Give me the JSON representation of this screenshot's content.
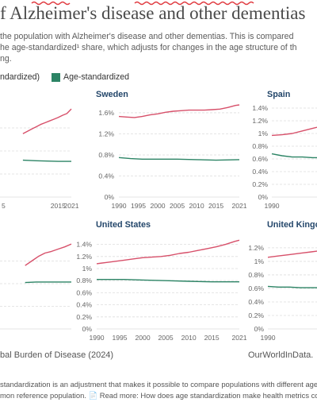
{
  "header": {
    "title": "f Alzheimer's disease and other dementias",
    "subtitle_line1": "the population with Alzheimer's disease and other dementias. This is compared",
    "subtitle_line2": "he age-standardized¹ share, which adjusts for changes in the age structure of th",
    "subtitle_line3": "ng."
  },
  "legend": {
    "item1": "ndardized)",
    "item2": "Age-standardized"
  },
  "colors": {
    "all_ages": "#d7506a",
    "age_standardized": "#2c8465",
    "grid": "#dddddd",
    "axis_text": "#666666",
    "title_text": "#23466a"
  },
  "chart_data": [
    {
      "type": "line",
      "title": "",
      "x_ticks": [
        "5",
        "2015",
        "2021"
      ],
      "y_ticks": [],
      "series": [
        {
          "key": "all_ages",
          "x": [
            1999,
            2001,
            2003,
            2005,
            2007,
            2009,
            2011,
            2013,
            2015,
            2017,
            2019,
            2021
          ],
          "values": [
            1.1,
            1.14,
            1.18,
            1.22,
            1.26,
            1.29,
            1.32,
            1.35,
            1.38,
            1.42,
            1.45,
            1.53
          ]
        },
        {
          "key": "age_standardized",
          "x": [
            1999,
            2005,
            2010,
            2015,
            2021
          ],
          "values": [
            0.64,
            0.63,
            0.625,
            0.62,
            0.62
          ]
        }
      ]
    },
    {
      "type": "line",
      "title": "Sweden",
      "x_ticks": [
        "1990",
        "1995",
        "2000",
        "2005",
        "2010",
        "2015",
        "2021"
      ],
      "y_ticks": [
        "0%",
        "0.4%",
        "0.8%",
        "1.2%",
        "1.6%"
      ],
      "ylim": [
        0,
        1.72
      ],
      "series": [
        {
          "key": "all_ages",
          "x": [
            1990,
            1992,
            1994,
            1996,
            1998,
            2000,
            2002,
            2004,
            2006,
            2008,
            2010,
            2012,
            2014,
            2016,
            2018,
            2020,
            2021
          ],
          "values": [
            1.53,
            1.52,
            1.51,
            1.53,
            1.56,
            1.58,
            1.61,
            1.63,
            1.64,
            1.65,
            1.65,
            1.65,
            1.66,
            1.67,
            1.7,
            1.74,
            1.75
          ]
        },
        {
          "key": "age_standardized",
          "x": [
            1990,
            1993,
            1996,
            2000,
            2005,
            2010,
            2015,
            2021
          ],
          "values": [
            0.75,
            0.73,
            0.72,
            0.72,
            0.72,
            0.71,
            0.7,
            0.71
          ]
        }
      ]
    },
    {
      "type": "line",
      "title": "Spain",
      "x_ticks": [
        "1990"
      ],
      "y_ticks": [
        "0%",
        "0.2%",
        "0.4%",
        "0.6%",
        "0.8%",
        "1%",
        "1.2%",
        "1.4%"
      ],
      "ylim": [
        0,
        1.45
      ],
      "series": [
        {
          "key": "all_ages",
          "x": [
            1990,
            1992,
            1994,
            1996,
            1998,
            2000,
            2002
          ],
          "values": [
            0.97,
            0.98,
            1.0,
            1.04,
            1.08,
            1.12,
            1.16
          ]
        },
        {
          "key": "age_standardized",
          "x": [
            1990,
            1992,
            1994,
            1996,
            1998,
            2000,
            2002
          ],
          "values": [
            0.68,
            0.65,
            0.63,
            0.63,
            0.62,
            0.62,
            0.62
          ]
        }
      ]
    },
    {
      "type": "line",
      "title": "",
      "x_ticks": [],
      "y_ticks": [],
      "series": [
        {
          "key": "all_ages",
          "x": [
            2000,
            2003,
            2006,
            2009,
            2012,
            2015,
            2018,
            2021
          ],
          "values": [
            1.12,
            1.2,
            1.28,
            1.34,
            1.37,
            1.41,
            1.45,
            1.5
          ]
        },
        {
          "key": "age_standardized",
          "x": [
            2000,
            2005,
            2010,
            2015,
            2021
          ],
          "values": [
            0.82,
            0.83,
            0.83,
            0.83,
            0.83
          ]
        }
      ]
    },
    {
      "type": "line",
      "title": "United States",
      "x_ticks": [
        "1990",
        "1995",
        "2000",
        "2005",
        "2010",
        "2015",
        "2021"
      ],
      "y_ticks": [
        "0%",
        "0.2%",
        "0.4%",
        "0.6%",
        "0.8%",
        "1%",
        "1.2%",
        "1.4%"
      ],
      "ylim": [
        0,
        1.5
      ],
      "series": [
        {
          "key": "all_ages",
          "x": [
            1990,
            1992,
            1994,
            1996,
            1998,
            2000,
            2002,
            2004,
            2006,
            2008,
            2010,
            2012,
            2014,
            2016,
            2018,
            2020,
            2021
          ],
          "values": [
            1.08,
            1.1,
            1.12,
            1.14,
            1.16,
            1.18,
            1.19,
            1.2,
            1.22,
            1.25,
            1.27,
            1.3,
            1.33,
            1.36,
            1.4,
            1.45,
            1.47
          ]
        },
        {
          "key": "age_standardized",
          "x": [
            1990,
            1993,
            1996,
            2000,
            2005,
            2010,
            2015,
            2021
          ],
          "values": [
            0.82,
            0.82,
            0.82,
            0.81,
            0.8,
            0.79,
            0.78,
            0.78
          ]
        }
      ]
    },
    {
      "type": "line",
      "title": "United Kingo",
      "x_ticks": [
        "1990"
      ],
      "y_ticks": [
        "0%",
        "0.2%",
        "0.4%",
        "0.6%",
        "0.8%",
        "1%",
        "1.2%"
      ],
      "ylim": [
        0,
        1.34
      ],
      "series": [
        {
          "key": "all_ages",
          "x": [
            1990,
            1992,
            1994,
            1996,
            1998,
            2000,
            2002
          ],
          "values": [
            1.06,
            1.08,
            1.1,
            1.12,
            1.14,
            1.16,
            1.18
          ]
        },
        {
          "key": "age_standardized",
          "x": [
            1990,
            1992,
            1994,
            1996,
            1998,
            2000,
            2002
          ],
          "values": [
            0.63,
            0.62,
            0.62,
            0.61,
            0.61,
            0.61,
            0.61
          ]
        }
      ]
    }
  ],
  "footer": {
    "source": "bal Burden of Disease (2024)",
    "brand": "OurWorldInData.",
    "note_line1": "standardization is an adjustment that makes it possible to compare populations with different age s",
    "note_line2": "mon reference population. 📄 Read more: How does age standardization make health metrics com"
  }
}
